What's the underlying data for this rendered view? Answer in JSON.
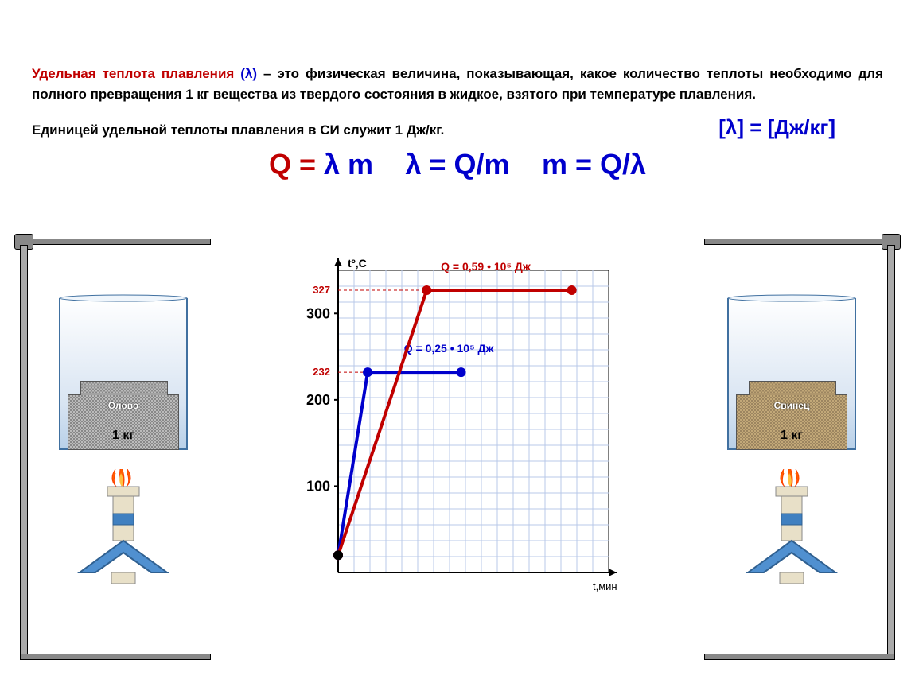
{
  "definition": {
    "term": "Удельная теплота плавления ",
    "lambda_paren": "(λ)",
    "text": " – это физическая величина, показывающая, какое количество теплоты необходимо для полного превращения 1 кг вещества из твердого состояния в жидкое, взятого при температуре плавления."
  },
  "si": {
    "text": "Единицей удельной теплоты плавления в СИ служит 1 Дж/кг.",
    "unit": "[λ] = [Дж/кг]"
  },
  "formulas": {
    "f1_q": "Q = ",
    "f1_lm": "λ m",
    "f2": "λ = Q/m",
    "f3": "m = Q/λ"
  },
  "chart": {
    "type": "line",
    "y_axis_label": "tº,C",
    "x_axis_label": "t,мин",
    "y_ticks": [
      100,
      200,
      300
    ],
    "y_annotations": [
      {
        "value": 232,
        "text": "232",
        "color": "#c00000"
      },
      {
        "value": 327,
        "text": "327",
        "color": "#c00000"
      }
    ],
    "y_min": 0,
    "y_max": 350,
    "x_min": 0,
    "x_max": 11,
    "grid_color": "#b8c8e8",
    "background_color": "#ffffff",
    "axis_color": "#000000",
    "line_width": 4,
    "marker_radius": 6,
    "series": [
      {
        "name": "Олово",
        "color": "#0000cc",
        "points": [
          [
            0,
            20
          ],
          [
            1.2,
            232
          ],
          [
            5,
            232
          ]
        ],
        "label": "Q = 0,25 • 10⁵ Дж",
        "label_pos": [
          4.5,
          255
        ]
      },
      {
        "name": "Свинец",
        "color": "#c00000",
        "points": [
          [
            0,
            20
          ],
          [
            3.6,
            327
          ],
          [
            9.5,
            327
          ]
        ],
        "label": "Q = 0,59 • 10⁵ Дж",
        "label_pos": [
          6,
          350
        ]
      }
    ]
  },
  "apparatus": {
    "left": {
      "material_label": "Олово",
      "material_class": "mat-tin",
      "mass": "1 кг"
    },
    "right": {
      "material_label": "Свинец",
      "material_class": "mat-lead",
      "mass": "1 кг"
    },
    "colors": {
      "beaker_fill_top": "#e8f0fa",
      "beaker_fill_bottom": "#b8d0e8",
      "burner_base": "#5090d0",
      "burner_stem": "#e8e0c8",
      "flame_outer": "#ff6000",
      "flame_inner": "#ffc040"
    }
  }
}
